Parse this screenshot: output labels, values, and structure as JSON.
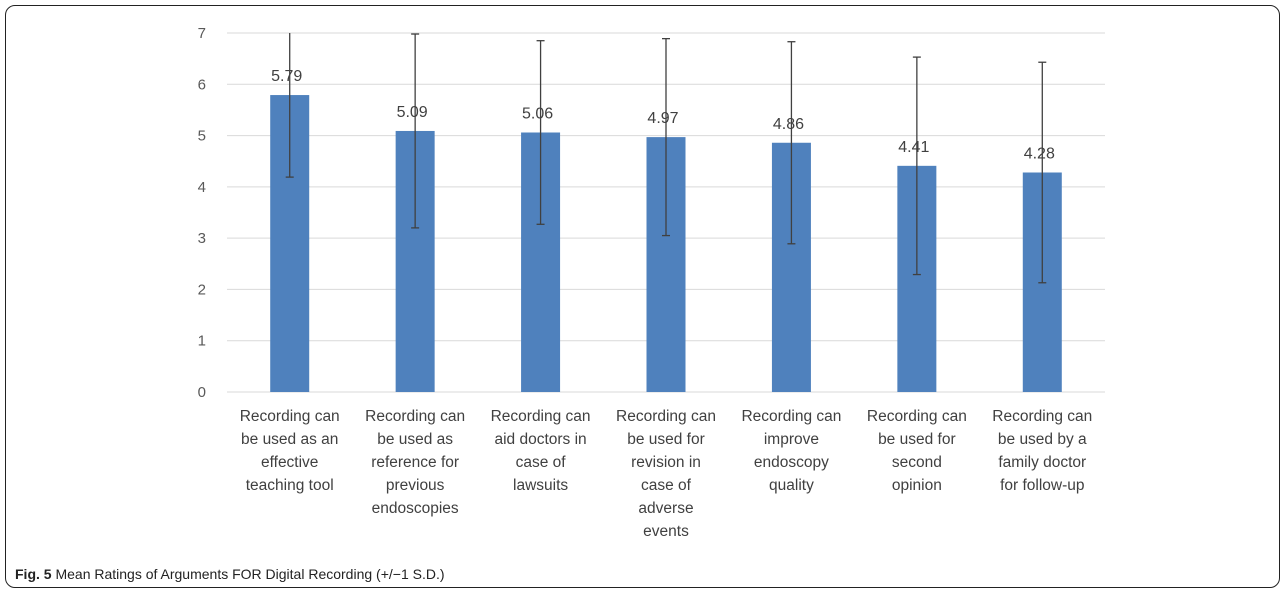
{
  "caption": {
    "label": "Fig. 5",
    "text": "Mean Ratings of Arguments FOR Digital Recording (+/−1 S.D.)"
  },
  "colors": {
    "bar": "#4f81bd",
    "grid": "#d9d9d9",
    "error_bar": "#404040"
  },
  "chart_data": {
    "type": "bar",
    "title": "",
    "xlabel": "",
    "ylabel": "",
    "ylim": [
      0,
      7
    ],
    "yticks": [
      0,
      1,
      2,
      3,
      4,
      5,
      6,
      7
    ],
    "grid": true,
    "legend": "none",
    "categories": [
      [
        "Recording can",
        "be used as an",
        "effective",
        "teaching tool"
      ],
      [
        "Recording can",
        "be used as",
        "reference for",
        "previous",
        "endoscopies"
      ],
      [
        "Recording can",
        "aid doctors in",
        "case of",
        "lawsuits"
      ],
      [
        "Recording can",
        "be used for",
        "revision in",
        "case of",
        "adverse",
        "events"
      ],
      [
        "Recording can",
        "improve",
        "endoscopy",
        "quality"
      ],
      [
        "Recording can",
        "be used for",
        "second",
        "opinion"
      ],
      [
        "Recording can",
        "be used by a",
        "family doctor",
        "for follow-up"
      ]
    ],
    "values": [
      5.79,
      5.09,
      5.06,
      4.97,
      4.86,
      4.41,
      4.28
    ],
    "data_labels": [
      "5.79",
      "5.09",
      "5.06",
      "4.97",
      "4.86",
      "4.41",
      "4.28"
    ],
    "error_sd": [
      1.6,
      1.89,
      1.79,
      1.92,
      1.97,
      2.12,
      2.15
    ]
  }
}
